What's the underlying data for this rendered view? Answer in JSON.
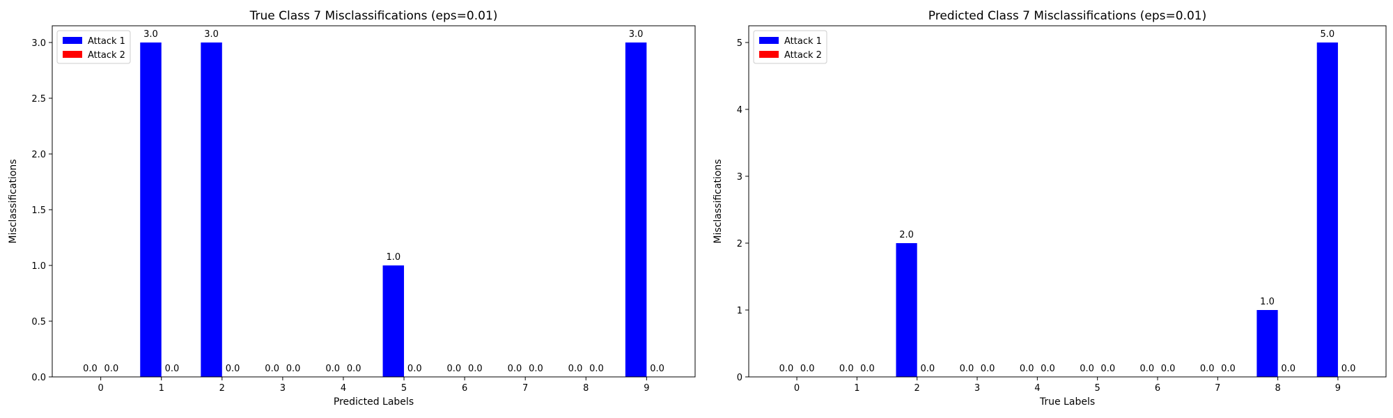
{
  "chart_data": [
    {
      "type": "bar",
      "title": "True Class 7 Misclassifications (eps=0.01)",
      "xlabel": "Predicted Labels",
      "ylabel": "Misclassifications",
      "categories": [
        "0",
        "1",
        "2",
        "3",
        "4",
        "5",
        "6",
        "7",
        "8",
        "9"
      ],
      "ylim": [
        0,
        3.15
      ],
      "yticks": [
        "0.0",
        "0.5",
        "1.0",
        "1.5",
        "2.0",
        "2.5",
        "3.0"
      ],
      "ytick_values": [
        0,
        0.5,
        1.0,
        1.5,
        2.0,
        2.5,
        3.0
      ],
      "legend_position": "top-left",
      "series": [
        {
          "name": "Attack 1",
          "color": "#0000ff",
          "values": [
            0,
            3,
            3,
            0,
            0,
            1,
            0,
            0,
            0,
            3
          ],
          "labels": [
            "0.0",
            "3.0",
            "3.0",
            "0.0",
            "0.0",
            "1.0",
            "0.0",
            "0.0",
            "0.0",
            "3.0"
          ]
        },
        {
          "name": "Attack 2",
          "color": "#ff0000",
          "values": [
            0,
            0,
            0,
            0,
            0,
            0,
            0,
            0,
            0,
            0
          ],
          "labels": [
            "0.0",
            "0.0",
            "0.0",
            "0.0",
            "0.0",
            "0.0",
            "0.0",
            "0.0",
            "0.0",
            "0.0"
          ]
        }
      ]
    },
    {
      "type": "bar",
      "title": "Predicted Class 7 Misclassifications (eps=0.01)",
      "xlabel": "True Labels",
      "ylabel": "Misclassifications",
      "categories": [
        "0",
        "1",
        "2",
        "3",
        "4",
        "5",
        "6",
        "7",
        "8",
        "9"
      ],
      "ylim": [
        0,
        5.25
      ],
      "yticks": [
        "0",
        "1",
        "2",
        "3",
        "4",
        "5"
      ],
      "ytick_values": [
        0,
        1,
        2,
        3,
        4,
        5
      ],
      "legend_position": "top-left",
      "series": [
        {
          "name": "Attack 1",
          "color": "#0000ff",
          "values": [
            0,
            0,
            2,
            0,
            0,
            0,
            0,
            0,
            1,
            5
          ],
          "labels": [
            "0.0",
            "0.0",
            "2.0",
            "0.0",
            "0.0",
            "0.0",
            "0.0",
            "0.0",
            "1.0",
            "5.0"
          ]
        },
        {
          "name": "Attack 2",
          "color": "#ff0000",
          "values": [
            0,
            0,
            0,
            0,
            0,
            0,
            0,
            0,
            0,
            0
          ],
          "labels": [
            "0.0",
            "0.0",
            "0.0",
            "0.0",
            "0.0",
            "0.0",
            "0.0",
            "0.0",
            "0.0",
            "0.0"
          ]
        }
      ]
    }
  ]
}
